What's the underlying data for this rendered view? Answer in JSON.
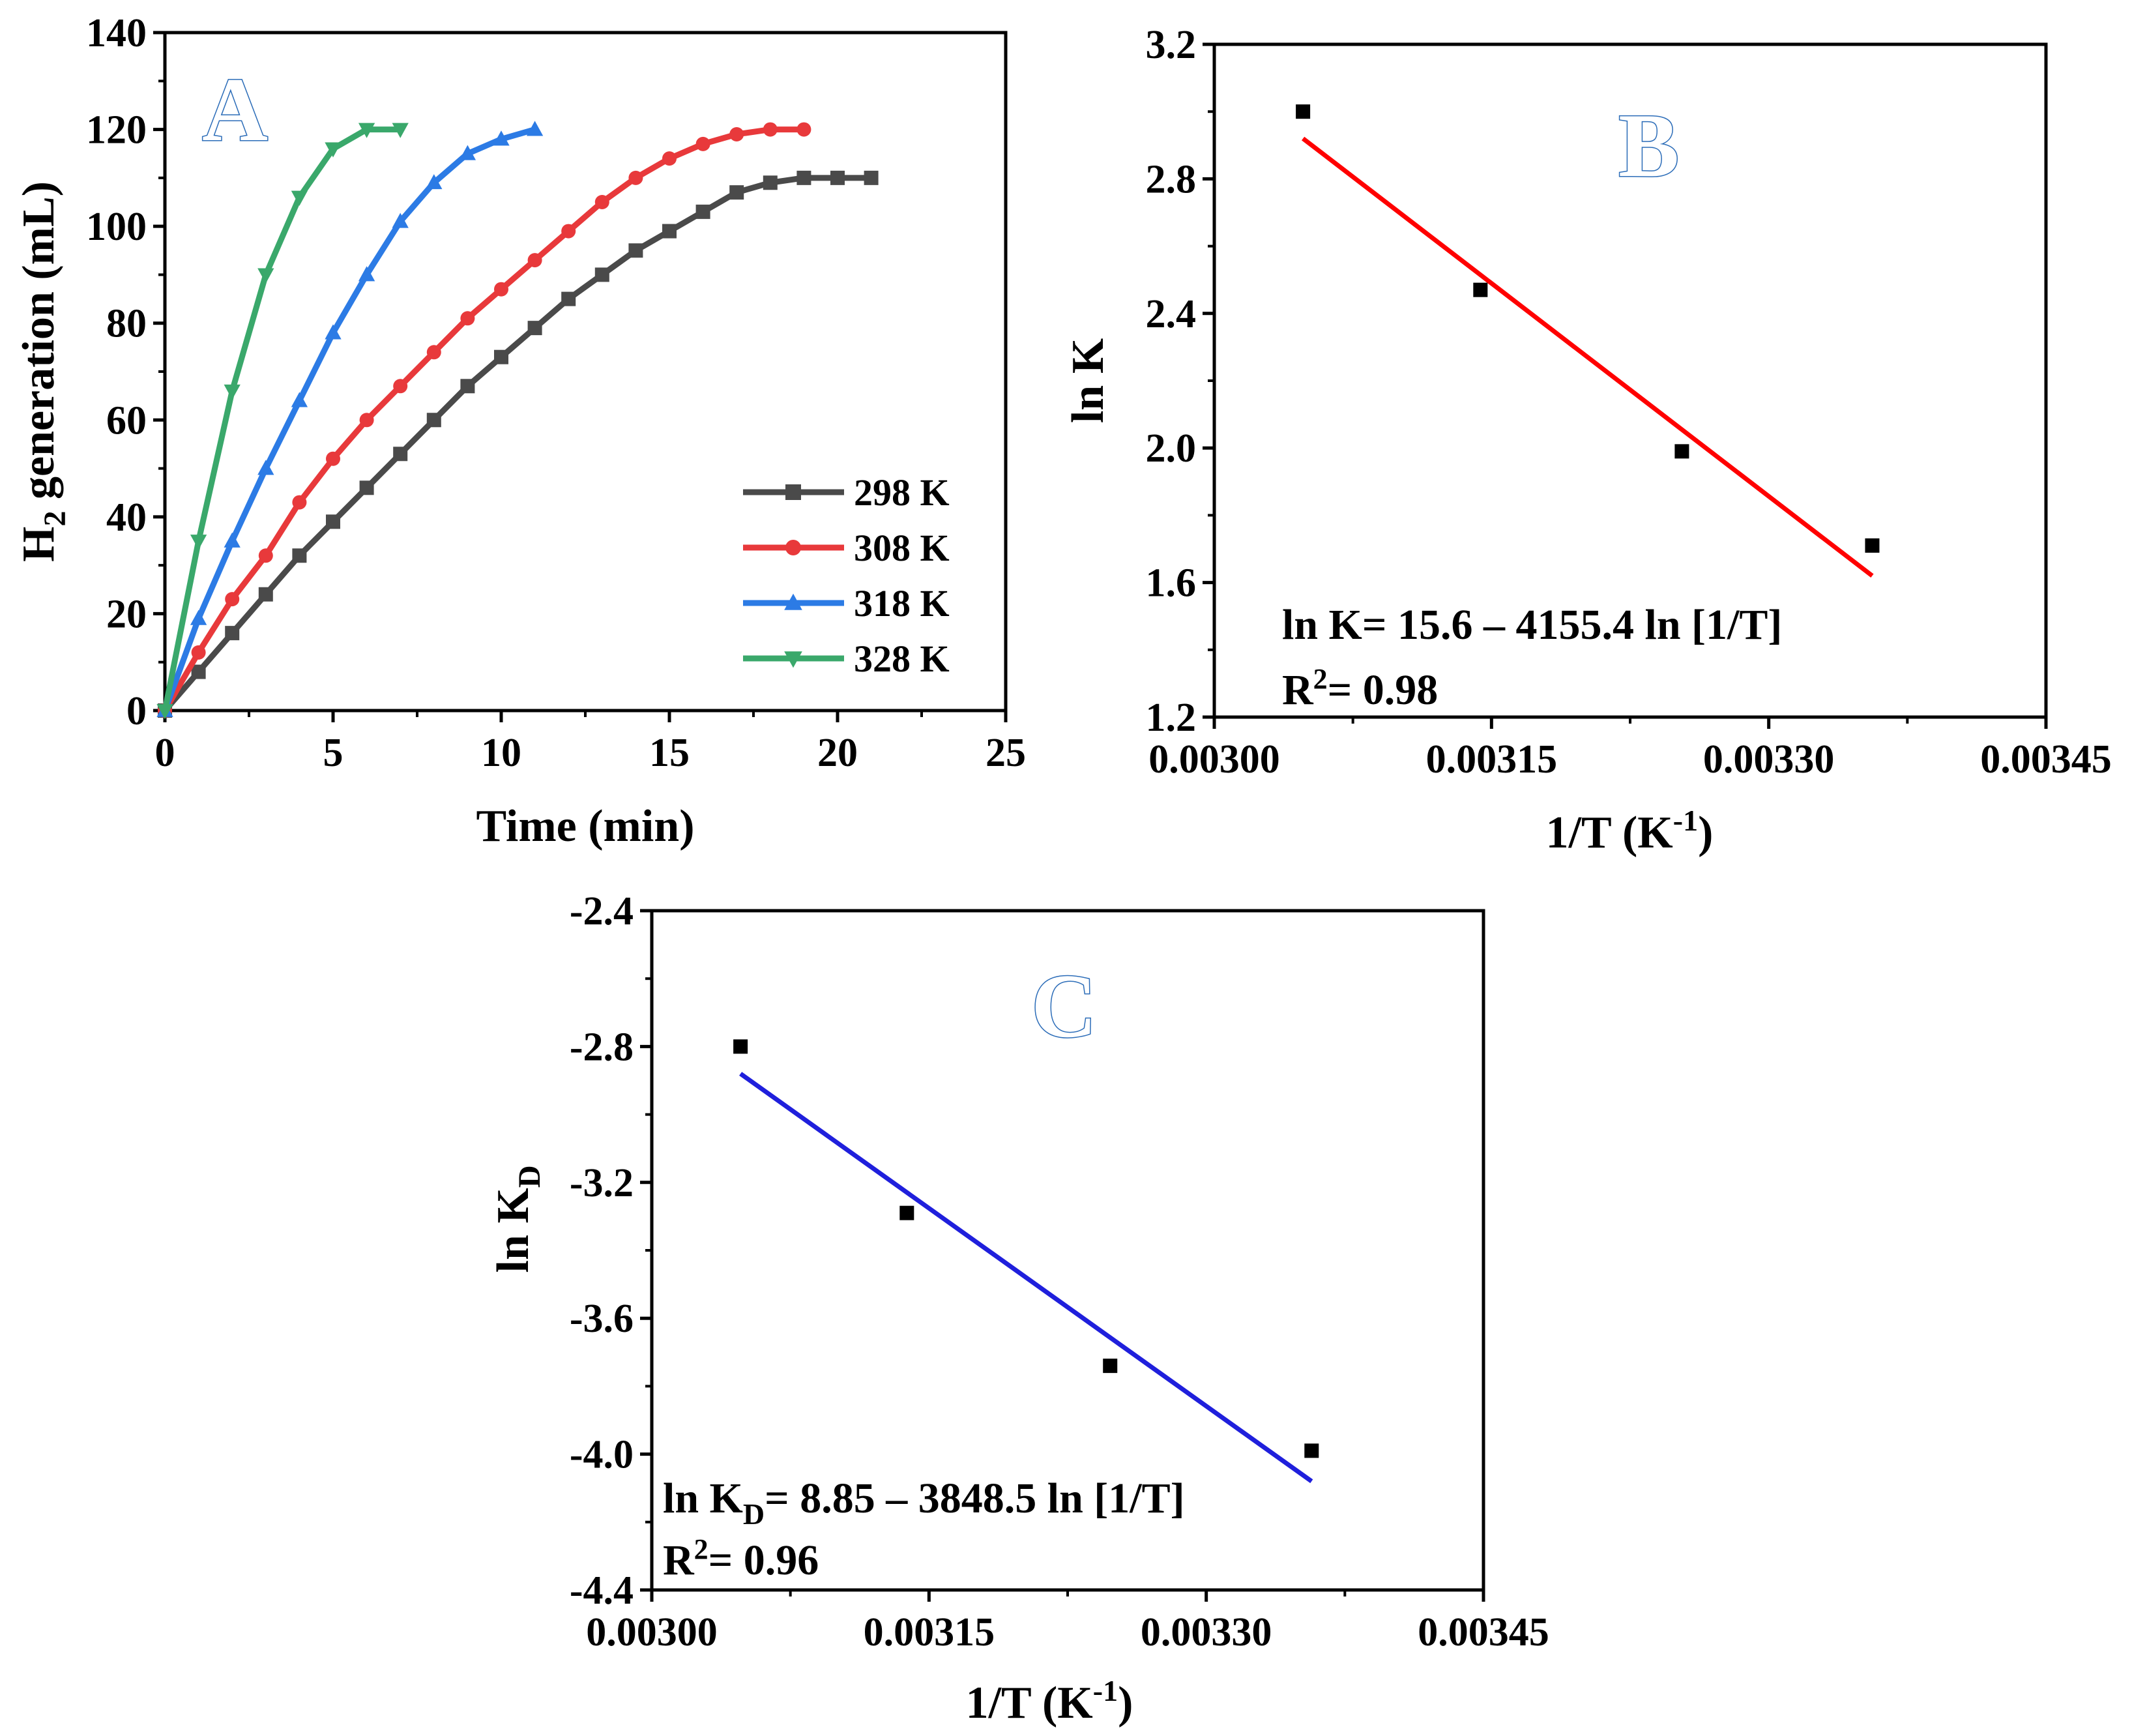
{
  "chart_data": [
    {
      "id": "A",
      "type": "line",
      "panel_label": "A",
      "xlabel": "Time (min)",
      "ylabel_main": "H",
      "ylabel_sub": "2",
      "ylabel_rest": " generation (mL)",
      "xlim": [
        0,
        25
      ],
      "ylim": [
        0,
        140
      ],
      "xticks": [
        0,
        5,
        10,
        15,
        20,
        25
      ],
      "yticks": [
        0,
        20,
        40,
        60,
        80,
        100,
        120,
        140
      ],
      "legend_position": "bottom-right",
      "series": [
        {
          "name": "298 K",
          "color": "#4a4a4a",
          "marker": "square",
          "x": [
            0,
            1,
            2,
            3,
            4,
            5,
            6,
            7,
            8,
            9,
            10,
            11,
            12,
            13,
            14,
            15,
            16,
            17,
            18,
            19,
            20,
            21
          ],
          "y": [
            0,
            8,
            16,
            24,
            32,
            39,
            46,
            53,
            60,
            67,
            73,
            79,
            85,
            90,
            95,
            99,
            103,
            107,
            109,
            110,
            110,
            110
          ]
        },
        {
          "name": "308 K",
          "color": "#e8393b",
          "marker": "circle",
          "x": [
            0,
            1,
            2,
            3,
            4,
            5,
            6,
            7,
            8,
            9,
            10,
            11,
            12,
            13,
            14,
            15,
            16,
            17,
            18,
            19
          ],
          "y": [
            0,
            12,
            23,
            32,
            43,
            52,
            60,
            67,
            74,
            81,
            87,
            93,
            99,
            105,
            110,
            114,
            117,
            119,
            120,
            120
          ]
        },
        {
          "name": "318 K",
          "color": "#2c7be5",
          "marker": "triangle-up",
          "x": [
            0,
            1,
            2,
            3,
            4,
            5,
            6,
            7,
            8,
            9,
            10,
            11
          ],
          "y": [
            0,
            19,
            35,
            50,
            64,
            78,
            90,
            101,
            109,
            115,
            118,
            120
          ]
        },
        {
          "name": "328 K",
          "color": "#3aa86b",
          "marker": "triangle-down",
          "x": [
            0,
            1,
            2,
            3,
            4,
            5,
            6,
            7
          ],
          "y": [
            0,
            35,
            66,
            90,
            106,
            116,
            120,
            120
          ]
        }
      ]
    },
    {
      "id": "B",
      "type": "scatter",
      "panel_label": "B",
      "xlabel_main": "1/T (K",
      "xlabel_sup": "-1",
      "xlabel_end": ")",
      "ylabel": "ln K",
      "xlim": [
        0.003,
        0.00345
      ],
      "ylim": [
        1.2,
        3.2
      ],
      "xticks": [
        "0.00300",
        "0.00315",
        "0.00330",
        "0.00345"
      ],
      "yticks": [
        "1.2",
        "1.6",
        "2.0",
        "2.4",
        "2.8",
        "3.2"
      ],
      "points": [
        {
          "x": 0.003048,
          "y": 3.0
        },
        {
          "x": 0.003144,
          "y": 2.47
        },
        {
          "x": 0.003253,
          "y": 1.99
        },
        {
          "x": 0.003356,
          "y": 1.71
        }
      ],
      "fit": {
        "color": "#ff0000",
        "x": [
          0.003048,
          0.003356
        ],
        "y": [
          2.92,
          1.62
        ]
      },
      "equation": "ln K= 15.6 – 4155.4 ln [1/T]",
      "r2_main": "R",
      "r2_sup": "2",
      "r2_value": "= 0.98"
    },
    {
      "id": "C",
      "type": "scatter",
      "panel_label": "C",
      "xlabel_main": "1/T (K",
      "xlabel_sup": "-1",
      "xlabel_end": ")",
      "ylabel_main": "ln K",
      "ylabel_sub": "D",
      "xlim": [
        0.003,
        0.00345
      ],
      "ylim": [
        -4.4,
        -2.4
      ],
      "xticks": [
        "0.00300",
        "0.00315",
        "0.00330",
        "0.00345"
      ],
      "yticks": [
        "-2.4",
        "-2.8",
        "-3.2",
        "-3.6",
        "-4.0",
        "-4.4"
      ],
      "points": [
        {
          "x": 0.003048,
          "y": -2.8
        },
        {
          "x": 0.003138,
          "y": -3.29
        },
        {
          "x": 0.003248,
          "y": -3.74
        },
        {
          "x": 0.003357,
          "y": -3.99
        }
      ],
      "fit": {
        "color": "#1f1fdc",
        "x": [
          0.003048,
          0.003357
        ],
        "y": [
          -2.88,
          -4.08
        ]
      },
      "equation_part1": "ln K",
      "equation_sub": "D",
      "equation_part2": "= 8.85 – 3848.5 ln [1/T]",
      "r2_main": "R",
      "r2_sup": "2",
      "r2_value": "= 0.96"
    }
  ]
}
